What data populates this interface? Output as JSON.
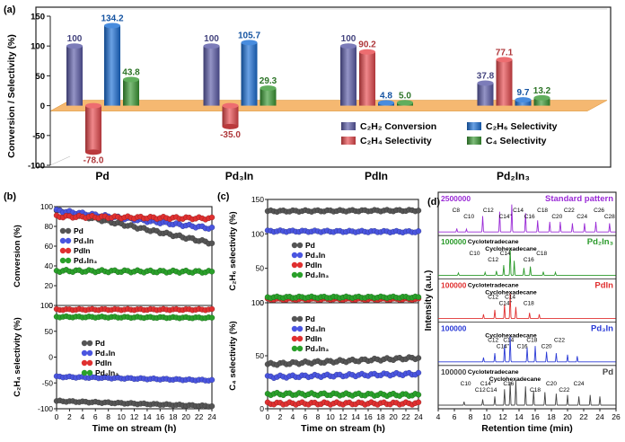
{
  "chart_data": [
    {
      "panel": "(a)",
      "type": "bar",
      "ylabel": "Conversion / Selectivity (%)",
      "ylim": [
        -100,
        150
      ],
      "yticks": [
        "-100",
        "-50",
        "0",
        "50",
        "100",
        "150"
      ],
      "categories": [
        "Pd",
        "Pd₃In",
        "PdIn",
        "Pd₂In₃"
      ],
      "series": [
        {
          "name": "C₂H₂ Conversion",
          "color": "#5b5ba8",
          "values": [
            100,
            100,
            100,
            37.8
          ],
          "labels": [
            "100",
            "100",
            "100",
            "37.8"
          ]
        },
        {
          "name": "C₂H₄ Selectivity",
          "color": "#e8484c",
          "values": [
            -78.0,
            -35.0,
            90.2,
            77.1
          ],
          "labels": [
            "-78.0",
            "-35.0",
            "90.2",
            "77.1"
          ]
        },
        {
          "name": "C₂H₆ Selectivity",
          "color": "#1a6fd6",
          "values": [
            134.2,
            105.7,
            4.8,
            9.7
          ],
          "labels": [
            "134.2",
            "105.7",
            "4.8",
            "9.7"
          ]
        },
        {
          "name": "C₄ Selectivity",
          "color": "#3a9a34",
          "values": [
            43.8,
            29.3,
            5.0,
            13.2
          ],
          "labels": [
            "43.8",
            "29.3",
            "5.0",
            "13.2"
          ]
        }
      ]
    },
    {
      "panel": "(b)",
      "type": "scatter",
      "xlabel": "Time on stream (h)",
      "xticks": [
        "0",
        "2",
        "4",
        "6",
        "8",
        "10",
        "12",
        "14",
        "16",
        "18",
        "20",
        "22",
        "24"
      ],
      "subplots": [
        {
          "ylabel": "Conversion (%)",
          "ylim": [
            0,
            100
          ],
          "yticks": [
            "0",
            "20",
            "40",
            "60",
            "80",
            "100"
          ],
          "series": [
            {
              "name": "Pd",
              "color": "#555555",
              "start": 96,
              "end": 63
            },
            {
              "name": "Pd₃In",
              "color": "#4a55e0",
              "start": 96,
              "end": 78
            },
            {
              "name": "PdIn",
              "color": "#e03030",
              "start": 90,
              "end": 88
            },
            {
              "name": "Pd₂In₃",
              "color": "#2aa02a",
              "start": 35,
              "end": 34
            }
          ]
        },
        {
          "ylabel": "C₂H₄ selectivity (%)",
          "ylim": [
            -100,
            100
          ],
          "yticks": [
            "-100",
            "-50",
            "0",
            "50",
            "100"
          ],
          "series": [
            {
              "name": "Pd",
              "color": "#555555",
              "start": -85,
              "end": -95
            },
            {
              "name": "Pd₃In",
              "color": "#4a55e0",
              "start": -38,
              "end": -45
            },
            {
              "name": "PdIn",
              "color": "#e03030",
              "start": 92,
              "end": 92
            },
            {
              "name": "Pd₂In₃",
              "color": "#2aa02a",
              "start": 78,
              "end": 76
            }
          ]
        }
      ]
    },
    {
      "panel": "(c)",
      "type": "scatter",
      "xlabel": "Time on stream (h)",
      "xticks": [
        "0",
        "2",
        "4",
        "6",
        "8",
        "10",
        "12",
        "14",
        "16",
        "18",
        "20",
        "22",
        "24"
      ],
      "subplots": [
        {
          "ylabel": "C₂H₆ selectivity (%)",
          "ylim": [
            0,
            150
          ],
          "yticks": [
            "0",
            "50",
            "100",
            "150"
          ],
          "series": [
            {
              "name": "Pd",
              "color": "#555555",
              "start": 133,
              "end": 134
            },
            {
              "name": "Pd₃In",
              "color": "#4a55e0",
              "start": 104,
              "end": 103
            },
            {
              "name": "PdIn",
              "color": "#e03030",
              "start": 5,
              "end": 5
            },
            {
              "name": "Pd₂In₃",
              "color": "#2aa02a",
              "start": 8,
              "end": 8
            }
          ]
        },
        {
          "ylabel": "C₄ selectivity (%)",
          "ylim": [
            0,
            100
          ],
          "yticks": [
            "0",
            "50",
            "100"
          ],
          "series": [
            {
              "name": "Pd",
              "color": "#555555",
              "start": 42,
              "end": 48
            },
            {
              "name": "Pd₃In",
              "color": "#4a55e0",
              "start": 30,
              "end": 33
            },
            {
              "name": "PdIn",
              "color": "#e03030",
              "start": 5,
              "end": 5
            },
            {
              "name": "Pd₂In₃",
              "color": "#2aa02a",
              "start": 14,
              "end": 13
            }
          ]
        }
      ]
    },
    {
      "panel": "(d)",
      "type": "line",
      "xlabel": "Retention time (min)",
      "ylabel": "Intensity (a.u.)",
      "xlim": [
        4,
        26
      ],
      "xticks": [
        "4",
        "6",
        "8",
        "10",
        "12",
        "14",
        "16",
        "18",
        "20",
        "22",
        "24",
        "26"
      ],
      "traces": [
        {
          "name": "Standard pattern",
          "scale": "2500000",
          "color": "#9a2ad6",
          "peaks": [
            [
              6.3,
              0.12
            ],
            [
              7.5,
              0.1
            ],
            [
              9.5,
              0.55
            ],
            [
              11.6,
              0.7
            ],
            [
              13.1,
              0.95
            ],
            [
              14.8,
              0.65
            ],
            [
              16.3,
              0.4
            ],
            [
              17.8,
              0.35
            ],
            [
              19.1,
              0.35
            ],
            [
              20.6,
              0.3
            ],
            [
              22.1,
              0.3
            ],
            [
              23.5,
              0.35
            ],
            [
              25.2,
              0.3
            ]
          ],
          "labels": [
            {
              "t": "C8",
              "x": 6.2
            },
            {
              "t": "C10",
              "x": 7.8
            },
            {
              "t": "C12",
              "x": 10.2
            },
            {
              "t": "C14\"",
              "x": 12.3
            },
            {
              "t": "C14",
              "x": 13.9
            },
            {
              "t": "C16",
              "x": 15.3
            },
            {
              "t": "C18",
              "x": 16.9
            },
            {
              "t": "C20",
              "x": 18.7
            },
            {
              "t": "C22",
              "x": 20.2
            },
            {
              "t": "C24",
              "x": 21.8
            },
            {
              "t": "C26",
              "x": 23.9
            },
            {
              "t": "C28",
              "x": 25.2
            }
          ]
        },
        {
          "name": "Pd₂In₃",
          "scale": "100000",
          "color": "#2a9a2a",
          "peaks": [
            [
              6.5,
              0.08
            ],
            [
              9.8,
              0.1
            ],
            [
              11.2,
              0.15
            ],
            [
              12.1,
              0.35
            ],
            [
              12.9,
              0.95
            ],
            [
              13.4,
              0.5
            ],
            [
              14.6,
              0.25
            ],
            [
              15.4,
              0.3
            ],
            [
              17.0,
              0.12
            ],
            [
              18.5,
              0.1
            ]
          ],
          "labels": [
            {
              "t": "C10",
              "x": 8.5
            },
            {
              "t": "C12",
              "x": 10.8
            },
            {
              "t": "C14",
              "x": 12.3
            },
            {
              "t": "C16",
              "x": 15.2
            },
            {
              "t": "C18",
              "x": 16.8
            },
            {
              "t": "Cyclotetradecane",
              "x": 10.8
            },
            {
              "t": "Cyclohexadecane",
              "x": 13.0
            }
          ]
        },
        {
          "name": "PdIn",
          "scale": "100000",
          "color": "#e03030",
          "peaks": [
            [
              9.6,
              0.15
            ],
            [
              11.0,
              0.3
            ],
            [
              12.2,
              0.5
            ],
            [
              12.9,
              0.9
            ],
            [
              13.6,
              0.4
            ],
            [
              15.3,
              0.2
            ],
            [
              16.5,
              0.15
            ]
          ],
          "labels": [
            {
              "t": "C12",
              "x": 10.8
            },
            {
              "t": "C14\"",
              "x": 12.3
            },
            {
              "t": "C14",
              "x": 12.9
            },
            {
              "t": "C18",
              "x": 15.2
            },
            {
              "t": "Cyclotetradecane",
              "x": 10.8
            },
            {
              "t": "Cyclohexadecane",
              "x": 13.0
            }
          ]
        },
        {
          "name": "Pd₃In",
          "scale": "100000",
          "color": "#2a3ad6",
          "peaks": [
            [
              9.6,
              0.15
            ],
            [
              11.0,
              0.3
            ],
            [
              12.2,
              0.6
            ],
            [
              12.9,
              0.9
            ],
            [
              15.0,
              0.5
            ],
            [
              16.0,
              0.55
            ],
            [
              17.4,
              0.35
            ],
            [
              18.6,
              0.3
            ],
            [
              20.0,
              0.25
            ],
            [
              21.2,
              0.2
            ]
          ],
          "labels": [
            {
              "t": "C12",
              "x": 10.8
            },
            {
              "t": "C14\"",
              "x": 12.0
            },
            {
              "t": "C14",
              "x": 12.7
            },
            {
              "t": "C16",
              "x": 14.4
            },
            {
              "t": "C18",
              "x": 15.6
            },
            {
              "t": "C20",
              "x": 17.4
            },
            {
              "t": "C22",
              "x": 19.0
            },
            {
              "t": "Cyclohexadecane",
              "x": 13.0
            }
          ]
        },
        {
          "name": "Pd",
          "scale": "100000",
          "color": "#444444",
          "peaks": [
            [
              7.2,
              0.12
            ],
            [
              9.5,
              0.2
            ],
            [
              11.0,
              0.3
            ],
            [
              12.2,
              0.55
            ],
            [
              12.9,
              0.8
            ],
            [
              13.6,
              0.85
            ],
            [
              14.8,
              0.65
            ],
            [
              15.8,
              0.5
            ],
            [
              17.2,
              0.45
            ],
            [
              18.6,
              0.4
            ],
            [
              20.0,
              0.35
            ],
            [
              21.4,
              0.3
            ],
            [
              22.8,
              0.35
            ],
            [
              24.0,
              0.3
            ]
          ],
          "labels": [
            {
              "t": "C10",
              "x": 7.4
            },
            {
              "t": "C12",
              "x": 9.2
            },
            {
              "t": "C14\"",
              "x": 10.0
            },
            {
              "t": "C14",
              "x": 10.6
            },
            {
              "t": "C16",
              "x": 12.7
            },
            {
              "t": "C18",
              "x": 16.0
            },
            {
              "t": "C20",
              "x": 18.0
            },
            {
              "t": "C22",
              "x": 19.6
            },
            {
              "t": "C24",
              "x": 21.4
            },
            {
              "t": "Cyclotetradecane",
              "x": 10.8
            },
            {
              "t": "Cyclohexadecane",
              "x": 13.5
            }
          ]
        }
      ]
    }
  ]
}
